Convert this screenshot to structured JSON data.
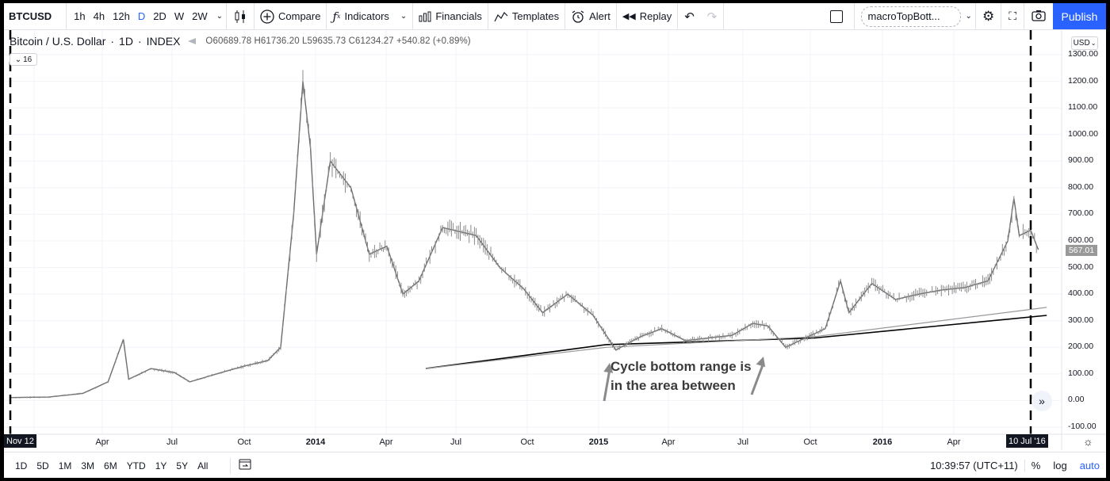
{
  "toolbar": {
    "symbol": "BTCUSD",
    "timeframes": [
      "1h",
      "4h",
      "12h",
      "D",
      "2D",
      "W",
      "2W"
    ],
    "active_timeframe": "D",
    "compare": "Compare",
    "indicators": "Indicators",
    "financials": "Financials",
    "templates": "Templates",
    "alert": "Alert",
    "replay": "Replay",
    "layout_name": "macroTopBott...",
    "publish": "Publish"
  },
  "legend": {
    "title": "Bitcoin / U.S. Dollar",
    "interval": "1D",
    "exchange": "INDEX",
    "open": "O60689.78",
    "high": "H61736.20",
    "low": "L59635.73",
    "close": "C61234.27",
    "change": "+540.82 (+0.89%)",
    "collapsed_count": "16"
  },
  "price_axis": {
    "currency": "USD",
    "labels": [
      "1300.00",
      "1200.00",
      "1100.00",
      "1000.00",
      "900.00",
      "800.00",
      "700.00",
      "600.00",
      "500.00",
      "400.00",
      "300.00",
      "200.00",
      "100.00",
      "0.00",
      "-100.00"
    ],
    "last_price": "567.01"
  },
  "time_axis": {
    "labels": [
      {
        "text": "3",
        "bold": false
      },
      {
        "text": "Apr",
        "bold": false
      },
      {
        "text": "Jul",
        "bold": false
      },
      {
        "text": "Oct",
        "bold": false
      },
      {
        "text": "2014",
        "bold": true
      },
      {
        "text": "Apr",
        "bold": false
      },
      {
        "text": "Jul",
        "bold": false
      },
      {
        "text": "Oct",
        "bold": false
      },
      {
        "text": "2015",
        "bold": true
      },
      {
        "text": "Apr",
        "bold": false
      },
      {
        "text": "Jul",
        "bold": false
      },
      {
        "text": "Oct",
        "bold": false
      },
      {
        "text": "2016",
        "bold": true
      },
      {
        "text": "Apr",
        "bold": false
      }
    ],
    "start_tag": "Nov 12",
    "end_tag": "10 Jul '16"
  },
  "annotation": {
    "line1": "Cycle bottom range is",
    "line2": "in the area between"
  },
  "bottom": {
    "ranges": [
      "1D",
      "5D",
      "1M",
      "3M",
      "6M",
      "YTD",
      "1Y",
      "5Y",
      "All"
    ],
    "clock": "10:39:57 (UTC+11)",
    "percent": "%",
    "log": "log",
    "auto": "auto"
  },
  "chart_data": {
    "type": "candlestick",
    "symbol": "BTCUSD",
    "interval": "1D",
    "ylim": [
      -100,
      1300
    ],
    "x_range": [
      "Nov 2012",
      "Jul 2016"
    ],
    "price_path": [
      {
        "date": "2012-11-12",
        "value": 11
      },
      {
        "date": "2013-01-01",
        "value": 13
      },
      {
        "date": "2013-02-15",
        "value": 27
      },
      {
        "date": "2013-03-20",
        "value": 70
      },
      {
        "date": "2013-04-09",
        "value": 230
      },
      {
        "date": "2013-04-16",
        "value": 80
      },
      {
        "date": "2013-05-15",
        "value": 120
      },
      {
        "date": "2013-06-15",
        "value": 105
      },
      {
        "date": "2013-07-05",
        "value": 70
      },
      {
        "date": "2013-08-15",
        "value": 105
      },
      {
        "date": "2013-09-15",
        "value": 130
      },
      {
        "date": "2013-10-15",
        "value": 150
      },
      {
        "date": "2013-11-01",
        "value": 200
      },
      {
        "date": "2013-11-18",
        "value": 700
      },
      {
        "date": "2013-11-30",
        "value": 1200
      },
      {
        "date": "2013-12-10",
        "value": 950
      },
      {
        "date": "2013-12-18",
        "value": 550
      },
      {
        "date": "2014-01-05",
        "value": 900
      },
      {
        "date": "2014-02-01",
        "value": 800
      },
      {
        "date": "2014-02-25",
        "value": 550
      },
      {
        "date": "2014-03-20",
        "value": 580
      },
      {
        "date": "2014-04-10",
        "value": 400
      },
      {
        "date": "2014-05-01",
        "value": 450
      },
      {
        "date": "2014-06-01",
        "value": 650
      },
      {
        "date": "2014-07-15",
        "value": 620
      },
      {
        "date": "2014-08-15",
        "value": 500
      },
      {
        "date": "2014-09-15",
        "value": 420
      },
      {
        "date": "2014-10-10",
        "value": 330
      },
      {
        "date": "2014-11-12",
        "value": 400
      },
      {
        "date": "2014-12-15",
        "value": 320
      },
      {
        "date": "2015-01-14",
        "value": 190
      },
      {
        "date": "2015-02-15",
        "value": 240
      },
      {
        "date": "2015-03-15",
        "value": 270
      },
      {
        "date": "2015-04-15",
        "value": 225
      },
      {
        "date": "2015-05-15",
        "value": 235
      },
      {
        "date": "2015-06-15",
        "value": 245
      },
      {
        "date": "2015-07-12",
        "value": 290
      },
      {
        "date": "2015-08-01",
        "value": 280
      },
      {
        "date": "2015-08-24",
        "value": 200
      },
      {
        "date": "2015-09-15",
        "value": 230
      },
      {
        "date": "2015-10-15",
        "value": 270
      },
      {
        "date": "2015-11-04",
        "value": 450
      },
      {
        "date": "2015-11-15",
        "value": 330
      },
      {
        "date": "2015-12-15",
        "value": 440
      },
      {
        "date": "2016-01-15",
        "value": 380
      },
      {
        "date": "2016-02-15",
        "value": 400
      },
      {
        "date": "2016-03-15",
        "value": 415
      },
      {
        "date": "2016-04-15",
        "value": 425
      },
      {
        "date": "2016-05-15",
        "value": 450
      },
      {
        "date": "2016-06-10",
        "value": 600
      },
      {
        "date": "2016-06-18",
        "value": 760
      },
      {
        "date": "2016-06-25",
        "value": 620
      },
      {
        "date": "2016-07-10",
        "value": 640
      },
      {
        "date": "2016-07-20",
        "value": 567
      }
    ],
    "moving_averages": [
      {
        "color": "#000000",
        "points": [
          {
            "date": "2014-05-10",
            "value": 120
          },
          {
            "date": "2015-01-01",
            "value": 210
          },
          {
            "date": "2015-10-01",
            "value": 235
          },
          {
            "date": "2016-07-31",
            "value": 320
          }
        ]
      },
      {
        "color": "#999999",
        "points": [
          {
            "date": "2014-05-10",
            "value": 120
          },
          {
            "date": "2015-01-01",
            "value": 200
          },
          {
            "date": "2015-10-01",
            "value": 240
          },
          {
            "date": "2016-07-31",
            "value": 350
          }
        ]
      }
    ],
    "vertical_markers": [
      "2012-11-12",
      "2016-07-10"
    ]
  }
}
